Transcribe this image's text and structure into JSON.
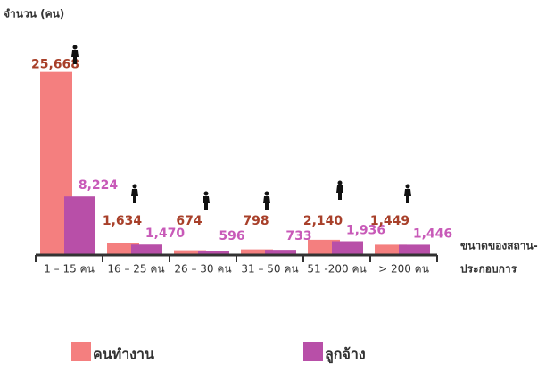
{
  "chart_data": {
    "type": "bar",
    "y_label": "จำนวน (คน)",
    "x_label": [
      "ขนาดของสถาน-",
      "ประกอบการ"
    ],
    "categories": [
      "1 – 15 คน",
      "16 – 25 คน",
      "26 – 30 คน",
      "31 – 50 คน",
      "51 -200 คน",
      "> 200 คน"
    ],
    "series": [
      {
        "name": "คนทำงาน",
        "color": "#f47f7f",
        "label_color": "#a8402a",
        "values": [
          25668,
          1634,
          674,
          798,
          2140,
          1449
        ],
        "value_labels": [
          "25,668",
          "1,634",
          "674",
          "798",
          "2,140",
          "1,449"
        ]
      },
      {
        "name": "ลูกจ้าง",
        "color": "#b84fa8",
        "label_color": "#c85ab8",
        "values": [
          8224,
          1470,
          596,
          733,
          1936,
          1446
        ],
        "value_labels": [
          "8,224",
          "1,470",
          "596",
          "733",
          "1,936",
          "1,446"
        ]
      }
    ],
    "ylim": [
      0,
      30000
    ]
  }
}
